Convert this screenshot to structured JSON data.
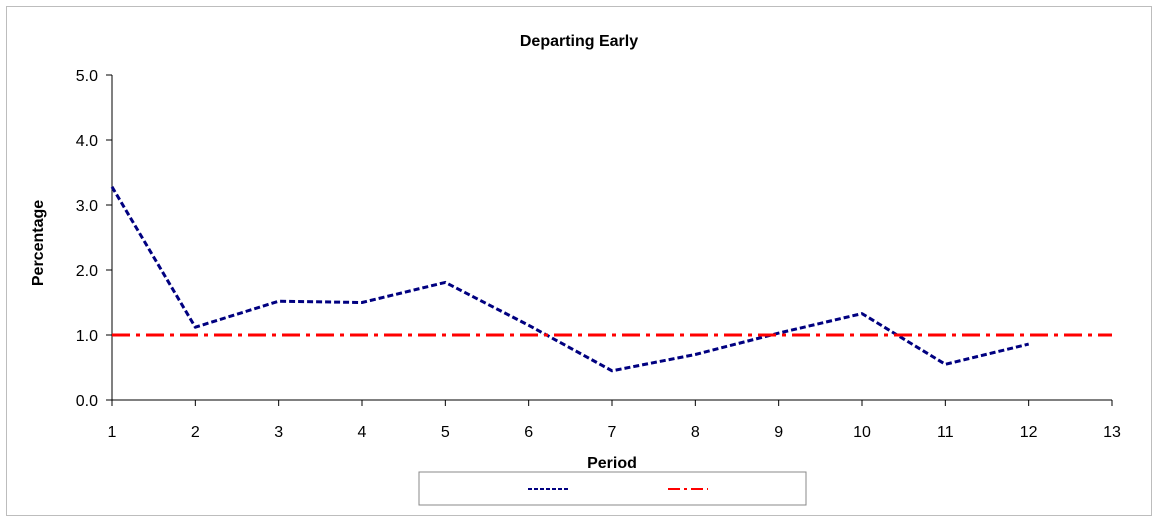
{
  "chart_data": {
    "type": "line",
    "title": "Departing Early",
    "xlabel": "Period",
    "ylabel": "Percentage",
    "x_ticks": [
      "1",
      "2",
      "3",
      "4",
      "5",
      "6",
      "7",
      "8",
      "9",
      "10",
      "11",
      "12",
      "13"
    ],
    "y_ticks": [
      "0.0",
      "1.0",
      "2.0",
      "3.0",
      "4.0",
      "5.0"
    ],
    "xlim": [
      1,
      13
    ],
    "ylim": [
      0,
      5
    ],
    "grid": false,
    "legend_position": "bottom",
    "series": [
      {
        "name": "",
        "style": "dashed",
        "color": "#000080",
        "x": [
          1,
          2,
          3,
          4,
          5,
          6,
          7,
          8,
          9,
          10,
          11,
          12
        ],
        "y": [
          3.28,
          1.12,
          1.52,
          1.5,
          1.81,
          1.15,
          0.45,
          0.7,
          1.03,
          1.33,
          0.55,
          0.86
        ]
      },
      {
        "name": "",
        "style": "dash-dot",
        "color": "#ff0000",
        "x": [
          1,
          13
        ],
        "y": [
          1.0,
          1.0
        ]
      }
    ]
  }
}
